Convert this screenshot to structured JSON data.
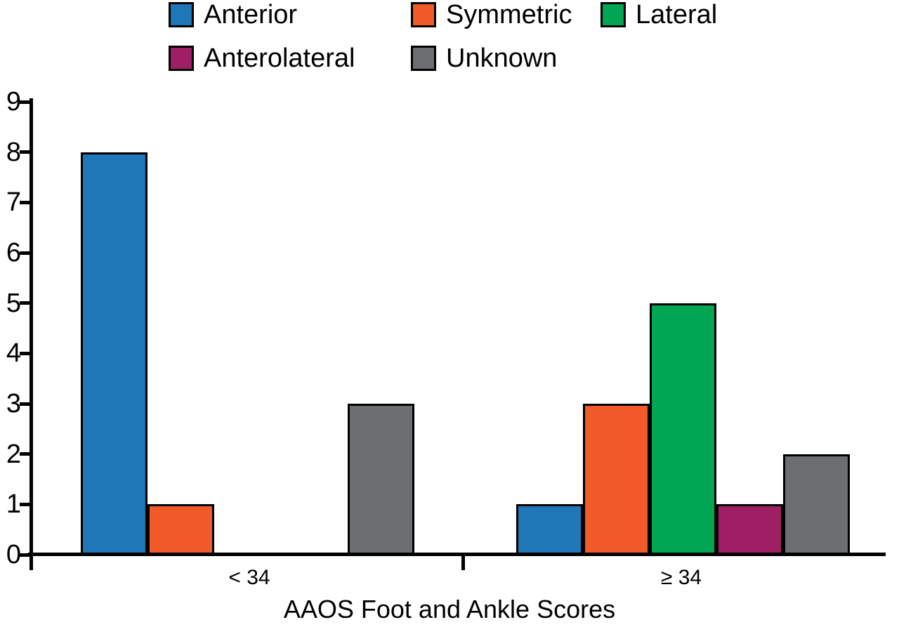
{
  "figure": {
    "background": "#ffffff",
    "text_color": "#000000"
  },
  "legend": {
    "position": "top",
    "items": [
      {
        "label": "Anterior",
        "color": "#2077b8"
      },
      {
        "label": "Symmetric",
        "color": "#f15a29"
      },
      {
        "label": "Lateral",
        "color": "#00a651"
      },
      {
        "label": "Anterolateral",
        "color": "#9e1f63"
      },
      {
        "label": "Unknown",
        "color": "#6d6e71"
      }
    ]
  },
  "chart_data": {
    "type": "bar",
    "title": "",
    "xlabel": "AAOS Foot and Ankle Scores",
    "ylabel": "",
    "categories": [
      "< 34",
      "≥ 34"
    ],
    "series": [
      {
        "name": "Anterior",
        "color": "#2077b8",
        "values": [
          8,
          1
        ]
      },
      {
        "name": "Symmetric",
        "color": "#f15a29",
        "values": [
          1,
          3
        ]
      },
      {
        "name": "Lateral",
        "color": "#00a651",
        "values": [
          0,
          5
        ]
      },
      {
        "name": "Anterolateral",
        "color": "#9e1f63",
        "values": [
          0,
          1
        ]
      },
      {
        "name": "Unknown",
        "color": "#6d6e71",
        "values": [
          3,
          2
        ]
      }
    ],
    "ylim": [
      0,
      9
    ],
    "yticks": [
      0,
      1,
      2,
      3,
      4,
      5,
      6,
      7,
      8,
      9
    ],
    "grid": false,
    "bar_outline_color": "#000000",
    "legend_position": "top"
  }
}
